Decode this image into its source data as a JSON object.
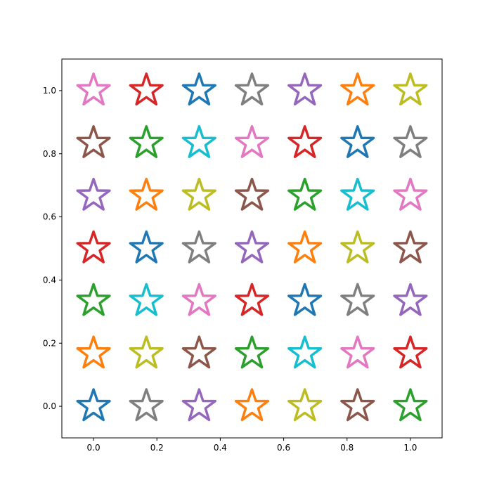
{
  "chart_data": {
    "type": "scatter",
    "title": "",
    "xlabel": "",
    "ylabel": "",
    "xlim": [
      -0.1,
      1.1
    ],
    "ylim": [
      -0.1,
      1.1
    ],
    "grid": false,
    "legend": "none",
    "marker": "star-outline",
    "x_ticks": [
      0.0,
      0.2,
      0.4,
      0.6,
      0.8,
      1.0
    ],
    "x_tick_labels": [
      "0.0",
      "0.2",
      "0.4",
      "0.6",
      "0.8",
      "1.0"
    ],
    "y_ticks": [
      0.0,
      0.2,
      0.4,
      0.6,
      0.8,
      1.0
    ],
    "y_tick_labels": [
      "0.0",
      "0.2",
      "0.4",
      "0.6",
      "0.8",
      "1.0"
    ],
    "x": [
      0,
      0.1667,
      0.3333,
      0.5,
      0.6667,
      0.8333,
      1.0
    ],
    "y": [
      0,
      0.1667,
      0.3333,
      0.5,
      0.6667,
      0.8333,
      1.0
    ],
    "palette": {
      "blue": "#1f77b4",
      "orange": "#ff7f0e",
      "green": "#2ca02c",
      "red": "#d62728",
      "purple": "#9467bd",
      "brown": "#8c564b",
      "pink": "#e377c2",
      "gray": "#7f7f7f",
      "olive": "#bcbd22",
      "cyan": "#17becf"
    },
    "color_grid_top_to_bottom": [
      [
        "pink",
        "red",
        "blue",
        "gray",
        "purple",
        "orange",
        "olive"
      ],
      [
        "brown",
        "green",
        "cyan",
        "pink",
        "red",
        "blue",
        "gray"
      ],
      [
        "purple",
        "orange",
        "olive",
        "brown",
        "green",
        "cyan",
        "pink"
      ],
      [
        "red",
        "blue",
        "gray",
        "purple",
        "orange",
        "olive",
        "brown"
      ],
      [
        "green",
        "cyan",
        "pink",
        "red",
        "blue",
        "gray",
        "purple"
      ],
      [
        "orange",
        "olive",
        "brown",
        "green",
        "cyan",
        "pink",
        "red"
      ],
      [
        "blue",
        "gray",
        "purple",
        "orange",
        "olive",
        "brown",
        "green"
      ]
    ]
  }
}
